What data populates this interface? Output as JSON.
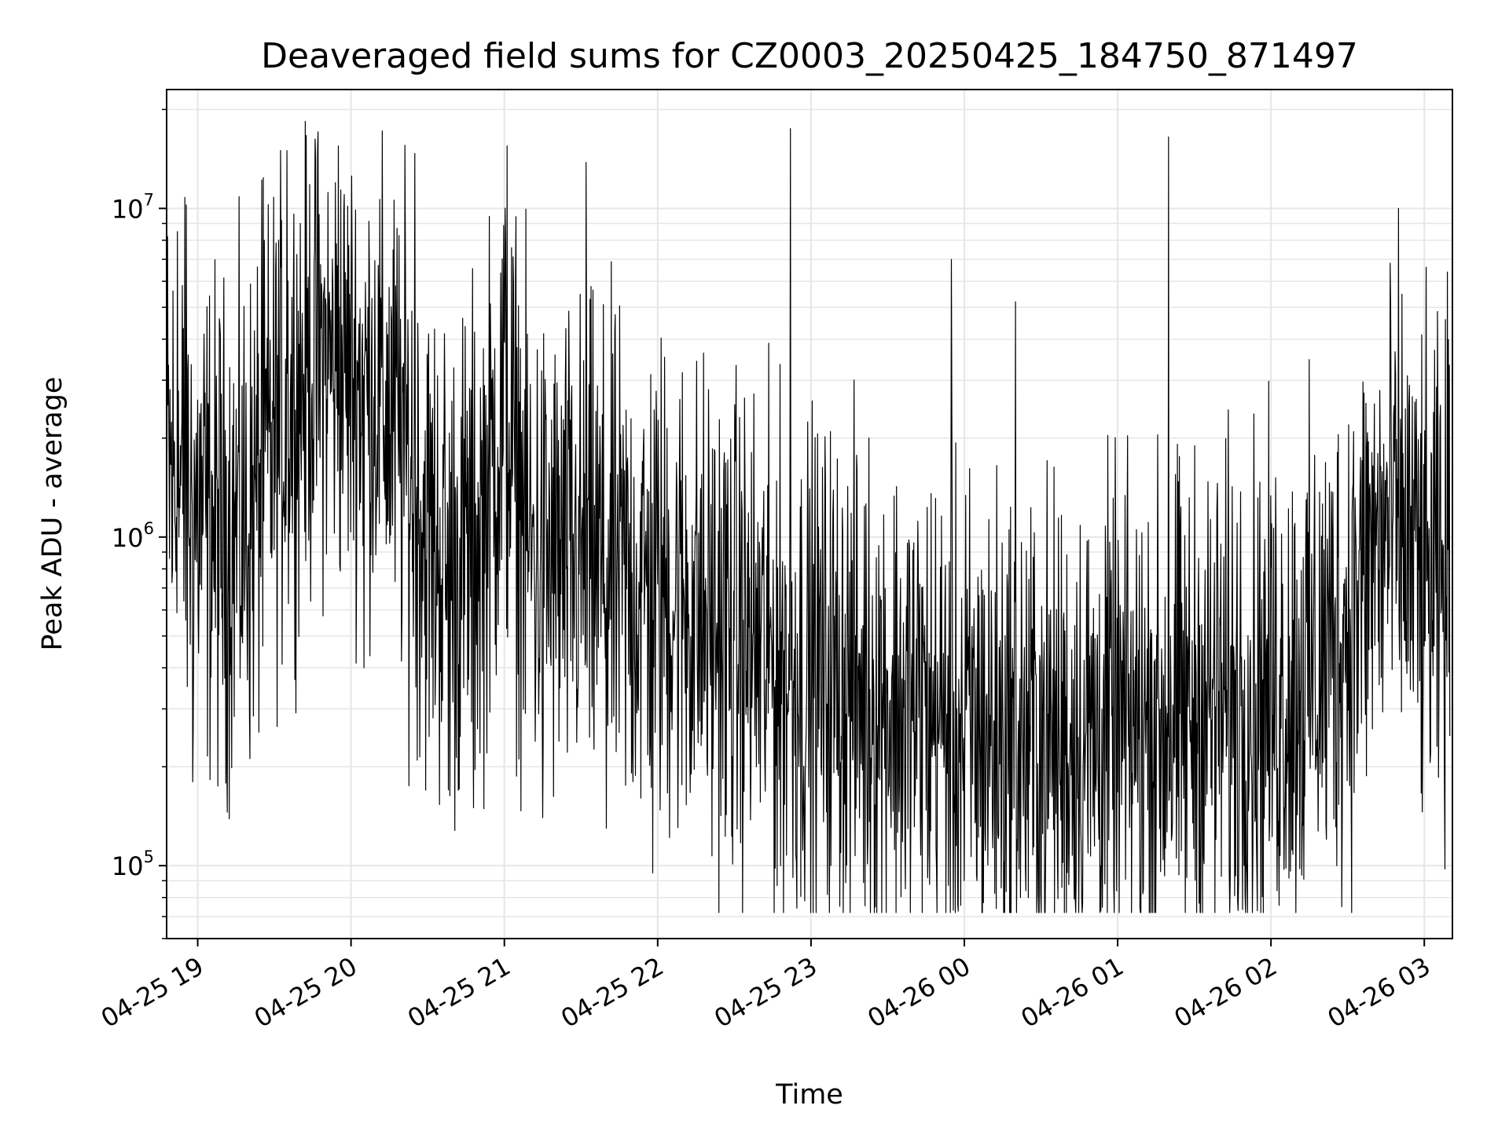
{
  "chart_data": {
    "type": "line",
    "title": "Deaveraged field sums for CZ0003_20250425_184750_871497",
    "xlabel": "Time",
    "ylabel": "Peak ADU - average",
    "y_scale": "log",
    "ylim": [
      60000,
      23000000
    ],
    "xlim": [
      "2025-04-25 18:47:50",
      "2025-04-26 03:11:00"
    ],
    "grid": true,
    "legend": "none",
    "line_color": "#000000",
    "grid_color": "#e6e6e6",
    "x_ticks": [
      {
        "label": "04-25 19",
        "value": "2025-04-25 19:00"
      },
      {
        "label": "04-25 20",
        "value": "2025-04-25 20:00"
      },
      {
        "label": "04-25 21",
        "value": "2025-04-25 21:00"
      },
      {
        "label": "04-25 22",
        "value": "2025-04-25 22:00"
      },
      {
        "label": "04-25 23",
        "value": "2025-04-25 23:00"
      },
      {
        "label": "04-26 00",
        "value": "2025-04-26 00:00"
      },
      {
        "label": "04-26 01",
        "value": "2025-04-26 01:00"
      },
      {
        "label": "04-26 02",
        "value": "2025-04-26 02:00"
      },
      {
        "label": "04-26 03",
        "value": "2025-04-26 03:00"
      }
    ],
    "y_ticks": [
      {
        "base": "10",
        "exp": "5",
        "value": 100000
      },
      {
        "base": "10",
        "exp": "6",
        "value": 1000000
      },
      {
        "base": "10",
        "exp": "7",
        "value": 10000000
      }
    ],
    "series": [
      {
        "x": [
          "2025-04-25 18:48",
          "2025-04-25 19:00",
          "2025-04-25 19:10",
          "2025-04-25 19:20",
          "2025-04-25 19:30",
          "2025-04-25 19:40",
          "2025-04-25 19:50",
          "2025-04-25 20:00",
          "2025-04-25 20:10",
          "2025-04-25 20:20",
          "2025-04-25 20:30",
          "2025-04-25 20:40",
          "2025-04-25 20:50",
          "2025-04-25 21:00",
          "2025-04-25 21:10",
          "2025-04-25 21:20",
          "2025-04-25 21:30",
          "2025-04-25 21:40",
          "2025-04-25 21:50",
          "2025-04-25 22:00",
          "2025-04-25 22:10",
          "2025-04-25 22:20",
          "2025-04-25 22:30",
          "2025-04-25 22:40",
          "2025-04-25 22:50",
          "2025-04-25 23:00",
          "2025-04-25 23:10",
          "2025-04-25 23:20",
          "2025-04-25 23:30",
          "2025-04-25 23:40",
          "2025-04-25 23:50",
          "2025-04-26 00:00",
          "2025-04-26 00:10",
          "2025-04-26 00:20",
          "2025-04-26 00:30",
          "2025-04-26 00:40",
          "2025-04-26 00:50",
          "2025-04-26 01:00",
          "2025-04-26 01:10",
          "2025-04-26 01:20",
          "2025-04-26 01:30",
          "2025-04-26 01:40",
          "2025-04-26 01:50",
          "2025-04-26 02:00",
          "2025-04-26 02:10",
          "2025-04-26 02:20",
          "2025-04-26 02:30",
          "2025-04-26 02:40",
          "2025-04-26 02:50",
          "2025-04-26 03:00",
          "2025-04-26 03:10"
        ],
        "center": [
          1500000,
          1200000,
          1000000,
          1100000,
          2000000,
          3000000,
          3500000,
          3200000,
          2800000,
          2000000,
          1000000,
          800000,
          1000000,
          2500000,
          900000,
          800000,
          850000,
          800000,
          700000,
          700000,
          650000,
          550000,
          500000,
          450000,
          400000,
          380000,
          370000,
          340000,
          320000,
          300000,
          280000,
          260000,
          250000,
          240000,
          240000,
          240000,
          250000,
          250000,
          260000,
          270000,
          290000,
          310000,
          330000,
          330000,
          360000,
          420000,
          550000,
          900000,
          1100000,
          700000,
          650000
        ],
        "spread": [
          5,
          4,
          4,
          4,
          4,
          3.5,
          3.5,
          3.5,
          3.5,
          4,
          4,
          4,
          4,
          4,
          4,
          4,
          4,
          4,
          4,
          4,
          4,
          4,
          4,
          4,
          4,
          4,
          4,
          4,
          4,
          4,
          4,
          4,
          4,
          4,
          4,
          4,
          4,
          4,
          4,
          4,
          4,
          4,
          4,
          4,
          4,
          4,
          4,
          4,
          4,
          4,
          4
        ]
      }
    ],
    "spikes": [
      {
        "x": "2025-04-25 18:52",
        "y": 8500000
      },
      {
        "x": "2025-04-25 18:55",
        "y": 10800000
      },
      {
        "x": "2025-04-25 19:25",
        "y": 12200000
      },
      {
        "x": "2025-04-25 19:35",
        "y": 15000000
      },
      {
        "x": "2025-04-25 19:47",
        "y": 15200000
      },
      {
        "x": "2025-04-25 19:55",
        "y": 15500000
      },
      {
        "x": "2025-04-25 20:05",
        "y": 14800000
      },
      {
        "x": "2025-04-25 20:25",
        "y": 14700000
      },
      {
        "x": "2025-04-25 21:01",
        "y": 15500000
      },
      {
        "x": "2025-04-25 21:32",
        "y": 13800000
      },
      {
        "x": "2025-04-25 22:52",
        "y": 17500000
      },
      {
        "x": "2025-04-25 23:55",
        "y": 7000000
      },
      {
        "x": "2025-04-26 00:20",
        "y": 5200000
      },
      {
        "x": "2025-04-26 01:20",
        "y": 16500000
      },
      {
        "x": "2025-04-26 02:50",
        "y": 10000000
      },
      {
        "x": "2025-04-26 03:09",
        "y": 6400000
      },
      {
        "x": "2025-04-25 18:58",
        "y": 180000
      },
      {
        "x": "2025-04-25 20:05",
        "y": 400000
      },
      {
        "x": "2025-04-25 20:38",
        "y": 170000
      },
      {
        "x": "2025-04-25 20:48",
        "y": 150000
      },
      {
        "x": "2025-04-25 21:15",
        "y": 140000
      },
      {
        "x": "2025-04-25 21:40",
        "y": 130000
      },
      {
        "x": "2025-04-25 21:58",
        "y": 95000
      },
      {
        "x": "2025-04-25 22:48",
        "y": 100000
      },
      {
        "x": "2025-04-25 23:37",
        "y": 85000
      },
      {
        "x": "2025-04-26 00:00",
        "y": 90000
      },
      {
        "x": "2025-04-26 00:05",
        "y": 90000
      },
      {
        "x": "2025-04-26 00:22",
        "y": 80000
      },
      {
        "x": "2025-04-26 00:55",
        "y": 88000
      },
      {
        "x": "2025-04-26 01:27",
        "y": 92000
      }
    ]
  }
}
